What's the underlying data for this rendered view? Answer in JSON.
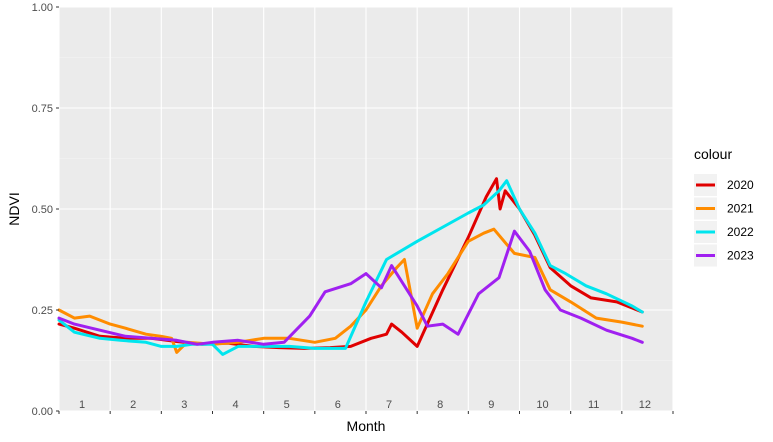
{
  "chart_data": {
    "type": "line",
    "xlabel": "Month",
    "ylabel": "NDVI",
    "xlim": [
      1,
      13
    ],
    "ylim": [
      0,
      1
    ],
    "y_ticks": [
      "0.00",
      "0.25",
      "0.50",
      "0.75",
      "1.00"
    ],
    "y_tick_values": [
      0,
      0.25,
      0.5,
      0.75,
      1.0
    ],
    "month_labels": [
      "1",
      "2",
      "3",
      "4",
      "5",
      "6",
      "7",
      "8",
      "9",
      "10",
      "11",
      "12"
    ],
    "grid": true,
    "legend": {
      "title": "colour",
      "placement": "right"
    },
    "series": [
      {
        "name": "2020",
        "color": "#e00000",
        "points": [
          [
            1.0,
            0.215
          ],
          [
            1.3,
            0.205
          ],
          [
            1.8,
            0.185
          ],
          [
            2.3,
            0.18
          ],
          [
            2.8,
            0.18
          ],
          [
            3.3,
            0.172
          ],
          [
            3.8,
            0.165
          ],
          [
            4.3,
            0.168
          ],
          [
            4.8,
            0.16
          ],
          [
            5.3,
            0.157
          ],
          [
            5.8,
            0.155
          ],
          [
            6.3,
            0.157
          ],
          [
            6.7,
            0.16
          ],
          [
            7.1,
            0.18
          ],
          [
            7.4,
            0.19
          ],
          [
            7.5,
            0.215
          ],
          [
            7.7,
            0.195
          ],
          [
            8.0,
            0.16
          ],
          [
            8.5,
            0.3
          ],
          [
            9.0,
            0.43
          ],
          [
            9.35,
            0.53
          ],
          [
            9.55,
            0.575
          ],
          [
            9.62,
            0.5
          ],
          [
            9.72,
            0.545
          ],
          [
            10.0,
            0.5
          ],
          [
            10.3,
            0.435
          ],
          [
            10.6,
            0.355
          ],
          [
            11.0,
            0.31
          ],
          [
            11.4,
            0.28
          ],
          [
            11.9,
            0.27
          ],
          [
            12.4,
            0.245
          ]
        ]
      },
      {
        "name": "2021",
        "color": "#ff8c00",
        "points": [
          [
            1.0,
            0.25
          ],
          [
            1.3,
            0.23
          ],
          [
            1.6,
            0.235
          ],
          [
            2.0,
            0.215
          ],
          [
            2.3,
            0.205
          ],
          [
            2.7,
            0.19
          ],
          [
            3.0,
            0.185
          ],
          [
            3.2,
            0.18
          ],
          [
            3.3,
            0.145
          ],
          [
            3.5,
            0.17
          ],
          [
            4.0,
            0.165
          ],
          [
            4.5,
            0.17
          ],
          [
            5.0,
            0.18
          ],
          [
            5.5,
            0.18
          ],
          [
            6.0,
            0.17
          ],
          [
            6.4,
            0.18
          ],
          [
            6.7,
            0.21
          ],
          [
            7.0,
            0.25
          ],
          [
            7.3,
            0.31
          ],
          [
            7.6,
            0.355
          ],
          [
            7.75,
            0.375
          ],
          [
            8.0,
            0.205
          ],
          [
            8.3,
            0.29
          ],
          [
            8.6,
            0.34
          ],
          [
            9.0,
            0.42
          ],
          [
            9.3,
            0.44
          ],
          [
            9.5,
            0.45
          ],
          [
            9.9,
            0.39
          ],
          [
            10.3,
            0.38
          ],
          [
            10.6,
            0.3
          ],
          [
            11.0,
            0.27
          ],
          [
            11.5,
            0.23
          ],
          [
            12.0,
            0.22
          ],
          [
            12.4,
            0.21
          ]
        ]
      },
      {
        "name": "2022",
        "color": "#00e5ee",
        "points": [
          [
            1.0,
            0.225
          ],
          [
            1.3,
            0.195
          ],
          [
            1.8,
            0.18
          ],
          [
            2.2,
            0.175
          ],
          [
            2.7,
            0.17
          ],
          [
            3.0,
            0.16
          ],
          [
            3.3,
            0.16
          ],
          [
            3.6,
            0.165
          ],
          [
            4.0,
            0.165
          ],
          [
            4.2,
            0.14
          ],
          [
            4.5,
            0.16
          ],
          [
            5.0,
            0.16
          ],
          [
            5.5,
            0.16
          ],
          [
            6.0,
            0.155
          ],
          [
            6.6,
            0.155
          ],
          [
            7.0,
            0.27
          ],
          [
            7.4,
            0.375
          ],
          [
            8.0,
            0.42
          ],
          [
            9.0,
            0.49
          ],
          [
            9.3,
            0.51
          ],
          [
            9.6,
            0.545
          ],
          [
            9.75,
            0.57
          ],
          [
            10.0,
            0.5
          ],
          [
            10.3,
            0.44
          ],
          [
            10.6,
            0.36
          ],
          [
            10.9,
            0.34
          ],
          [
            11.3,
            0.31
          ],
          [
            11.7,
            0.29
          ],
          [
            12.2,
            0.26
          ],
          [
            12.4,
            0.245
          ]
        ]
      },
      {
        "name": "2023",
        "color": "#a020f0",
        "points": [
          [
            1.0,
            0.23
          ],
          [
            1.3,
            0.215
          ],
          [
            1.8,
            0.2
          ],
          [
            2.3,
            0.185
          ],
          [
            2.8,
            0.18
          ],
          [
            3.3,
            0.175
          ],
          [
            3.7,
            0.165
          ],
          [
            4.0,
            0.17
          ],
          [
            4.5,
            0.175
          ],
          [
            5.0,
            0.165
          ],
          [
            5.4,
            0.17
          ],
          [
            5.9,
            0.235
          ],
          [
            6.2,
            0.295
          ],
          [
            6.7,
            0.315
          ],
          [
            7.0,
            0.34
          ],
          [
            7.3,
            0.305
          ],
          [
            7.5,
            0.36
          ],
          [
            8.0,
            0.26
          ],
          [
            8.2,
            0.21
          ],
          [
            8.5,
            0.215
          ],
          [
            8.8,
            0.19
          ],
          [
            9.2,
            0.29
          ],
          [
            9.6,
            0.33
          ],
          [
            9.9,
            0.445
          ],
          [
            10.2,
            0.395
          ],
          [
            10.5,
            0.3
          ],
          [
            10.8,
            0.25
          ],
          [
            11.2,
            0.23
          ],
          [
            11.7,
            0.2
          ],
          [
            12.2,
            0.18
          ],
          [
            12.4,
            0.17
          ]
        ]
      }
    ]
  }
}
